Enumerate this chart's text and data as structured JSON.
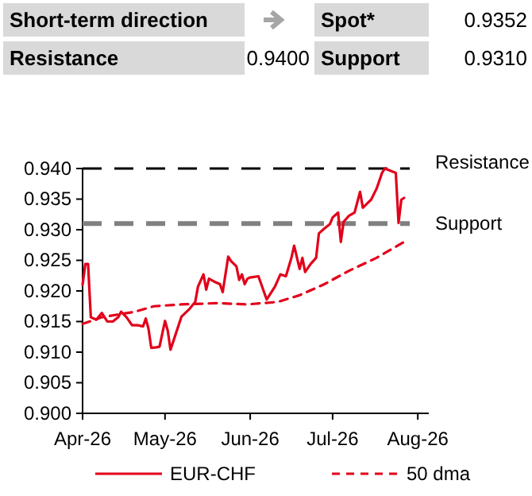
{
  "chart_data": {
    "type": "line",
    "annotations": [
      "Short-term direction",
      "Spot*",
      "0.9352",
      "Resistance",
      "0.9400",
      "Support",
      "0.9310"
    ],
    "xlim": [
      "2026-04-01",
      "2026-08-05"
    ],
    "xticks": [
      {
        "value": "2026-04-01",
        "label": "Apr-26"
      },
      {
        "value": "2026-05-01",
        "label": "May-26"
      },
      {
        "value": "2026-06-01",
        "label": "Jun-26"
      },
      {
        "value": "2026-07-01",
        "label": "Jul-26"
      },
      {
        "value": "2026-08-01",
        "label": "Aug-26"
      }
    ],
    "ylim": [
      0.9,
      0.94
    ],
    "yticks": [
      {
        "value": 0.9,
        "label": "0.900"
      },
      {
        "value": 0.905,
        "label": "0.905"
      },
      {
        "value": 0.91,
        "label": "0.910"
      },
      {
        "value": 0.915,
        "label": "0.915"
      },
      {
        "value": 0.92,
        "label": "0.920"
      },
      {
        "value": 0.925,
        "label": "0.925"
      },
      {
        "value": 0.93,
        "label": "0.930"
      },
      {
        "value": 0.935,
        "label": "0.935"
      },
      {
        "value": 0.94,
        "label": "0.940"
      }
    ],
    "grid": false,
    "legend": "bottom",
    "ref_lines": [
      {
        "axis": "y",
        "value": 0.94,
        "label": "Resistance",
        "color": "#000000",
        "line_style": "dashed"
      },
      {
        "axis": "y",
        "value": 0.931,
        "label": "Support",
        "color": "#808080",
        "line_style": "dashed"
      }
    ],
    "series": [
      {
        "name": "EUR-CHF",
        "color": "#e2001a",
        "line_style": "solid",
        "x": [
          "2026-04-01",
          "2026-04-02",
          "2026-04-03",
          "2026-04-04",
          "2026-04-06",
          "2026-04-08",
          "2026-04-10",
          "2026-04-12",
          "2026-04-14",
          "2026-04-15",
          "2026-04-17",
          "2026-04-19",
          "2026-04-21",
          "2026-04-23",
          "2026-04-24",
          "2026-04-25",
          "2026-04-26",
          "2026-04-28",
          "2026-04-29",
          "2026-05-01",
          "2026-05-02",
          "2026-05-03",
          "2026-05-05",
          "2026-05-07",
          "2026-05-10",
          "2026-05-12",
          "2026-05-13",
          "2026-05-15",
          "2026-05-16",
          "2026-05-17",
          "2026-05-19",
          "2026-05-21",
          "2026-05-22",
          "2026-05-24",
          "2026-05-25",
          "2026-05-27",
          "2026-05-28",
          "2026-05-29",
          "2026-05-30",
          "2026-05-31",
          "2026-06-01",
          "2026-06-04",
          "2026-06-07",
          "2026-06-10",
          "2026-06-12",
          "2026-06-14",
          "2026-06-16",
          "2026-06-17",
          "2026-06-19",
          "2026-06-20",
          "2026-06-21",
          "2026-06-23",
          "2026-06-25",
          "2026-06-26",
          "2026-06-28",
          "2026-06-30",
          "2026-07-01",
          "2026-07-03",
          "2026-07-04",
          "2026-07-05",
          "2026-07-07",
          "2026-07-09",
          "2026-07-11",
          "2026-07-12",
          "2026-07-15",
          "2026-07-17",
          "2026-07-19",
          "2026-07-20",
          "2026-07-24",
          "2026-07-25",
          "2026-07-26",
          "2026-07-27"
        ],
        "values": [
          0.921,
          0.9244,
          0.9244,
          0.9157,
          0.9153,
          0.9164,
          0.915,
          0.915,
          0.9157,
          0.9166,
          0.9157,
          0.9144,
          0.9144,
          0.9142,
          0.9155,
          0.9138,
          0.9107,
          0.9108,
          0.9109,
          0.9151,
          0.9135,
          0.9104,
          0.9131,
          0.9158,
          0.9171,
          0.9182,
          0.9207,
          0.9227,
          0.9202,
          0.922,
          0.9215,
          0.9211,
          0.9198,
          0.9256,
          0.9249,
          0.924,
          0.9218,
          0.9227,
          0.9211,
          0.922,
          0.9222,
          0.9224,
          0.9186,
          0.9207,
          0.9227,
          0.9224,
          0.9254,
          0.9274,
          0.9236,
          0.9254,
          0.9231,
          0.9244,
          0.9254,
          0.9294,
          0.9302,
          0.9309,
          0.932,
          0.9328,
          0.928,
          0.9313,
          0.9323,
          0.9328,
          0.9362,
          0.9336,
          0.9349,
          0.9367,
          0.9393,
          0.94,
          0.9393,
          0.9311,
          0.9349,
          0.9352
        ]
      },
      {
        "name": "50 dma",
        "color": "#e2001a",
        "line_style": "dashed",
        "x": [
          "2026-04-01",
          "2026-04-08",
          "2026-04-20",
          "2026-04-27",
          "2026-05-07",
          "2026-05-20",
          "2026-05-31",
          "2026-06-11",
          "2026-06-19",
          "2026-06-28",
          "2026-07-07",
          "2026-07-17",
          "2026-07-27"
        ],
        "values": [
          0.9146,
          0.9157,
          0.9166,
          0.9175,
          0.9178,
          0.918,
          0.9178,
          0.9182,
          0.9193,
          0.9211,
          0.9233,
          0.9254,
          0.928
        ]
      }
    ]
  }
}
